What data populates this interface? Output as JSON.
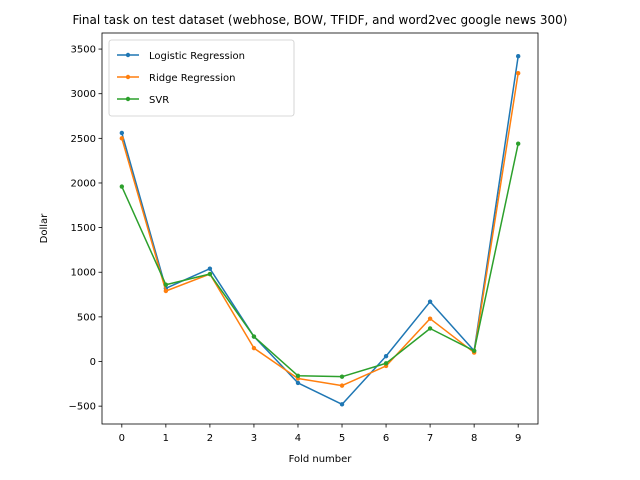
{
  "chart_data": {
    "type": "line",
    "title": "Final task on test dataset (webhose, BOW, TFIDF, and word2vec google news 300)",
    "xlabel": "Fold number",
    "ylabel": "Dollar",
    "x": [
      0,
      1,
      2,
      3,
      4,
      5,
      6,
      7,
      8,
      9
    ],
    "xticks": [
      0,
      1,
      2,
      3,
      4,
      5,
      6,
      7,
      8,
      9
    ],
    "yticks": [
      -500,
      0,
      500,
      1000,
      1500,
      2000,
      2500,
      3000,
      3500
    ],
    "xlim": [
      -0.45,
      9.45
    ],
    "ylim": [
      -700,
      3680
    ],
    "grid": false,
    "legend_position": "upper-left",
    "series": [
      {
        "name": "Logistic Regression",
        "color": "#1f77b4",
        "values": [
          2560,
          820,
          1040,
          280,
          -240,
          -480,
          60,
          670,
          120,
          3420
        ]
      },
      {
        "name": "Ridge Regression",
        "color": "#ff7f0e",
        "values": [
          2500,
          790,
          980,
          150,
          -190,
          -270,
          -50,
          480,
          100,
          3230
        ]
      },
      {
        "name": "SVR",
        "color": "#2ca02c",
        "values": [
          1960,
          860,
          980,
          280,
          -160,
          -170,
          -20,
          370,
          120,
          2440
        ]
      }
    ]
  }
}
